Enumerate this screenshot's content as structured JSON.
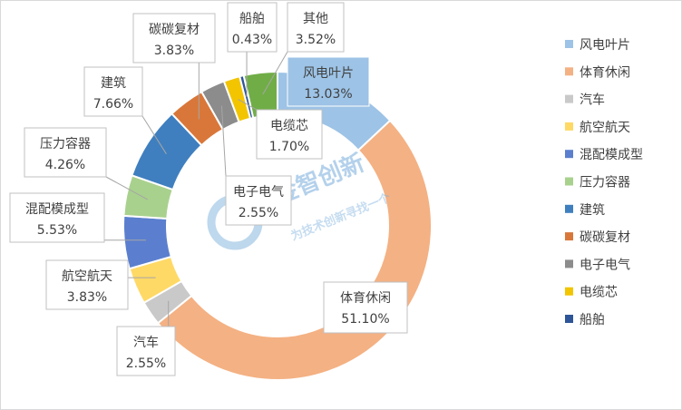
{
  "chart_data": {
    "type": "pie",
    "style": "doughnut",
    "title": "",
    "legend_position": "right",
    "slices": [
      {
        "name": "风电叶片",
        "value": 13.03,
        "label": "13.03%",
        "color": "#9dc3e6"
      },
      {
        "name": "体育休闲",
        "value": 51.1,
        "label": "51.10%",
        "color": "#f4b183"
      },
      {
        "name": "汽车",
        "value": 2.55,
        "label": "2.55%",
        "color": "#c9c9c9"
      },
      {
        "name": "航空航天",
        "value": 3.83,
        "label": "3.83%",
        "color": "#ffd966"
      },
      {
        "name": "混配模成型",
        "value": 5.53,
        "label": "5.53%",
        "color": "#5b7fce"
      },
      {
        "name": "压力容器",
        "value": 4.26,
        "label": "4.26%",
        "color": "#a9d18e"
      },
      {
        "name": "建筑",
        "value": 7.66,
        "label": "7.66%",
        "color": "#3f7fbf"
      },
      {
        "name": "碳碳复材",
        "value": 3.83,
        "label": "3.83%",
        "color": "#d9773a"
      },
      {
        "name": "电子电气",
        "value": 2.55,
        "label": "2.55%",
        "color": "#8c8c8c"
      },
      {
        "name": "电缆芯",
        "value": 1.7,
        "label": "1.70%",
        "color": "#f2c500"
      },
      {
        "name": "船舶",
        "value": 0.43,
        "label": "0.43%",
        "color": "#2e5597"
      },
      {
        "name": "其他",
        "value": 3.52,
        "label": "3.52%",
        "color": "#70ad47"
      }
    ],
    "legend": [
      "风电叶片",
      "体育休闲",
      "汽车",
      "航空航天",
      "混配模成型",
      "压力容器",
      "建筑",
      "碳碳复材",
      "电子电气",
      "电缆芯",
      "船舶"
    ]
  },
  "watermark": {
    "name": "金智创新",
    "slogan": "为技术创新寻找一个"
  }
}
